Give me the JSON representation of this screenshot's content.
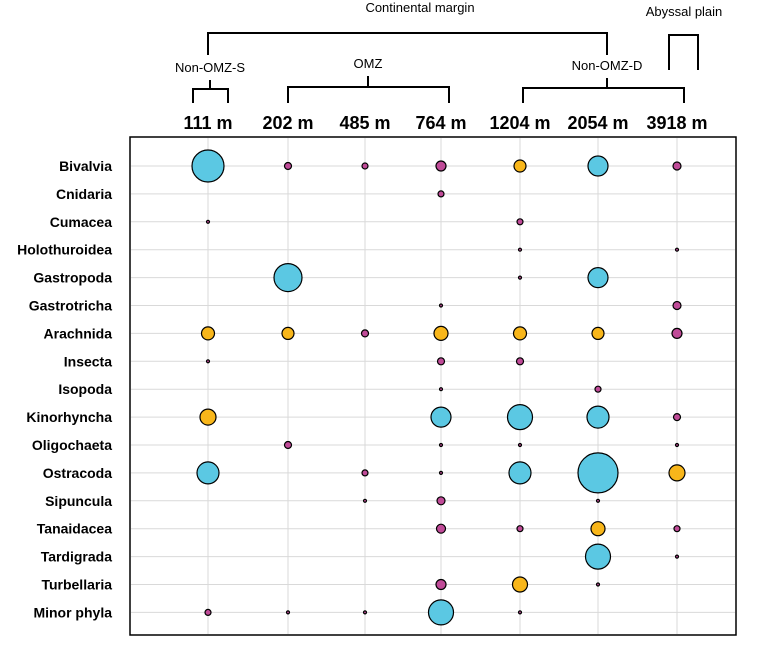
{
  "chart_data": {
    "type": "bubble",
    "title": "",
    "groups": {
      "top": "Continental margin",
      "abyssal": "Abyssal plain",
      "nonomz_s": "Non-OMZ-S",
      "omz": "OMZ",
      "nonomz_d": "Non-OMZ-D"
    },
    "depths": [
      "111 m",
      "202 m",
      "485 m",
      "764 m",
      "1204 m",
      "2054 m",
      "3918 m"
    ],
    "taxa": [
      "Bivalvia",
      "Cnidaria",
      "Cumacea",
      "Holothuroidea",
      "Gastropoda",
      "Gastrotricha",
      "Arachnida",
      "Insecta",
      "Isopoda",
      "Kinorhyncha",
      "Oligochaeta",
      "Ostracoda",
      "Sipuncula",
      "Tanaidacea",
      "Tardigrada",
      "Turbellaria",
      "Minor phyla"
    ],
    "categories": {
      "large": "#5bc8e3",
      "medium": "#f8b61a",
      "small": "#c04b98"
    },
    "points": [
      {
        "taxon": "Bivalvia",
        "depth": "111 m",
        "size": 16,
        "category": "large"
      },
      {
        "taxon": "Bivalvia",
        "depth": "202 m",
        "size": 3.5,
        "category": "small"
      },
      {
        "taxon": "Bivalvia",
        "depth": "485 m",
        "size": 3,
        "category": "small"
      },
      {
        "taxon": "Bivalvia",
        "depth": "764 m",
        "size": 5,
        "category": "small"
      },
      {
        "taxon": "Bivalvia",
        "depth": "1204 m",
        "size": 6,
        "category": "medium"
      },
      {
        "taxon": "Bivalvia",
        "depth": "2054 m",
        "size": 10,
        "category": "large"
      },
      {
        "taxon": "Bivalvia",
        "depth": "3918 m",
        "size": 4,
        "category": "small"
      },
      {
        "taxon": "Cnidaria",
        "depth": "764 m",
        "size": 3,
        "category": "small"
      },
      {
        "taxon": "Cumacea",
        "depth": "111 m",
        "size": 1.5,
        "category": "small"
      },
      {
        "taxon": "Cumacea",
        "depth": "1204 m",
        "size": 3,
        "category": "small"
      },
      {
        "taxon": "Holothuroidea",
        "depth": "1204 m",
        "size": 1.5,
        "category": "small"
      },
      {
        "taxon": "Holothuroidea",
        "depth": "3918 m",
        "size": 1.5,
        "category": "small"
      },
      {
        "taxon": "Gastropoda",
        "depth": "202 m",
        "size": 14,
        "category": "large"
      },
      {
        "taxon": "Gastropoda",
        "depth": "1204 m",
        "size": 1.5,
        "category": "small"
      },
      {
        "taxon": "Gastropoda",
        "depth": "2054 m",
        "size": 10,
        "category": "large"
      },
      {
        "taxon": "Gastrotricha",
        "depth": "764 m",
        "size": 1.5,
        "category": "small"
      },
      {
        "taxon": "Gastrotricha",
        "depth": "3918 m",
        "size": 4,
        "category": "small"
      },
      {
        "taxon": "Arachnida",
        "depth": "111 m",
        "size": 6.5,
        "category": "medium"
      },
      {
        "taxon": "Arachnida",
        "depth": "202 m",
        "size": 6,
        "category": "medium"
      },
      {
        "taxon": "Arachnida",
        "depth": "485 m",
        "size": 3.5,
        "category": "small"
      },
      {
        "taxon": "Arachnida",
        "depth": "764 m",
        "size": 7,
        "category": "medium"
      },
      {
        "taxon": "Arachnida",
        "depth": "1204 m",
        "size": 6.5,
        "category": "medium"
      },
      {
        "taxon": "Arachnida",
        "depth": "2054 m",
        "size": 6,
        "category": "medium"
      },
      {
        "taxon": "Arachnida",
        "depth": "3918 m",
        "size": 5,
        "category": "small"
      },
      {
        "taxon": "Insecta",
        "depth": "111 m",
        "size": 1.5,
        "category": "small"
      },
      {
        "taxon": "Insecta",
        "depth": "764 m",
        "size": 3.5,
        "category": "small"
      },
      {
        "taxon": "Insecta",
        "depth": "1204 m",
        "size": 3.5,
        "category": "small"
      },
      {
        "taxon": "Isopoda",
        "depth": "764 m",
        "size": 1.5,
        "category": "small"
      },
      {
        "taxon": "Isopoda",
        "depth": "2054 m",
        "size": 3,
        "category": "small"
      },
      {
        "taxon": "Kinorhyncha",
        "depth": "111 m",
        "size": 8,
        "category": "medium"
      },
      {
        "taxon": "Kinorhyncha",
        "depth": "764 m",
        "size": 10,
        "category": "large"
      },
      {
        "taxon": "Kinorhyncha",
        "depth": "1204 m",
        "size": 12.5,
        "category": "large"
      },
      {
        "taxon": "Kinorhyncha",
        "depth": "2054 m",
        "size": 11,
        "category": "large"
      },
      {
        "taxon": "Kinorhyncha",
        "depth": "3918 m",
        "size": 3.5,
        "category": "small"
      },
      {
        "taxon": "Oligochaeta",
        "depth": "202 m",
        "size": 3.5,
        "category": "small"
      },
      {
        "taxon": "Oligochaeta",
        "depth": "764 m",
        "size": 1.5,
        "category": "small"
      },
      {
        "taxon": "Oligochaeta",
        "depth": "1204 m",
        "size": 1.5,
        "category": "small"
      },
      {
        "taxon": "Oligochaeta",
        "depth": "3918 m",
        "size": 1.5,
        "category": "small"
      },
      {
        "taxon": "Ostracoda",
        "depth": "111 m",
        "size": 11,
        "category": "large"
      },
      {
        "taxon": "Ostracoda",
        "depth": "485 m",
        "size": 3,
        "category": "small"
      },
      {
        "taxon": "Ostracoda",
        "depth": "764 m",
        "size": 1.5,
        "category": "small"
      },
      {
        "taxon": "Ostracoda",
        "depth": "1204 m",
        "size": 11,
        "category": "large"
      },
      {
        "taxon": "Ostracoda",
        "depth": "2054 m",
        "size": 20,
        "category": "large"
      },
      {
        "taxon": "Ostracoda",
        "depth": "3918 m",
        "size": 8,
        "category": "medium"
      },
      {
        "taxon": "Sipuncula",
        "depth": "485 m",
        "size": 1.5,
        "category": "small"
      },
      {
        "taxon": "Sipuncula",
        "depth": "764 m",
        "size": 4,
        "category": "small"
      },
      {
        "taxon": "Sipuncula",
        "depth": "2054 m",
        "size": 1.5,
        "category": "small"
      },
      {
        "taxon": "Tanaidacea",
        "depth": "764 m",
        "size": 4.5,
        "category": "small"
      },
      {
        "taxon": "Tanaidacea",
        "depth": "1204 m",
        "size": 3,
        "category": "small"
      },
      {
        "taxon": "Tanaidacea",
        "depth": "2054 m",
        "size": 7,
        "category": "medium"
      },
      {
        "taxon": "Tanaidacea",
        "depth": "3918 m",
        "size": 3,
        "category": "small"
      },
      {
        "taxon": "Tardigrada",
        "depth": "2054 m",
        "size": 12.5,
        "category": "large"
      },
      {
        "taxon": "Tardigrada",
        "depth": "3918 m",
        "size": 1.5,
        "category": "small"
      },
      {
        "taxon": "Turbellaria",
        "depth": "764 m",
        "size": 5,
        "category": "small"
      },
      {
        "taxon": "Turbellaria",
        "depth": "1204 m",
        "size": 7.5,
        "category": "medium"
      },
      {
        "taxon": "Turbellaria",
        "depth": "2054 m",
        "size": 1.5,
        "category": "small"
      },
      {
        "taxon": "Minor phyla",
        "depth": "111 m",
        "size": 3,
        "category": "small"
      },
      {
        "taxon": "Minor phyla",
        "depth": "202 m",
        "size": 1.5,
        "category": "small"
      },
      {
        "taxon": "Minor phyla",
        "depth": "485 m",
        "size": 1.5,
        "category": "small"
      },
      {
        "taxon": "Minor phyla",
        "depth": "764 m",
        "size": 12.5,
        "category": "large"
      },
      {
        "taxon": "Minor phyla",
        "depth": "1204 m",
        "size": 1.5,
        "category": "small"
      }
    ]
  }
}
